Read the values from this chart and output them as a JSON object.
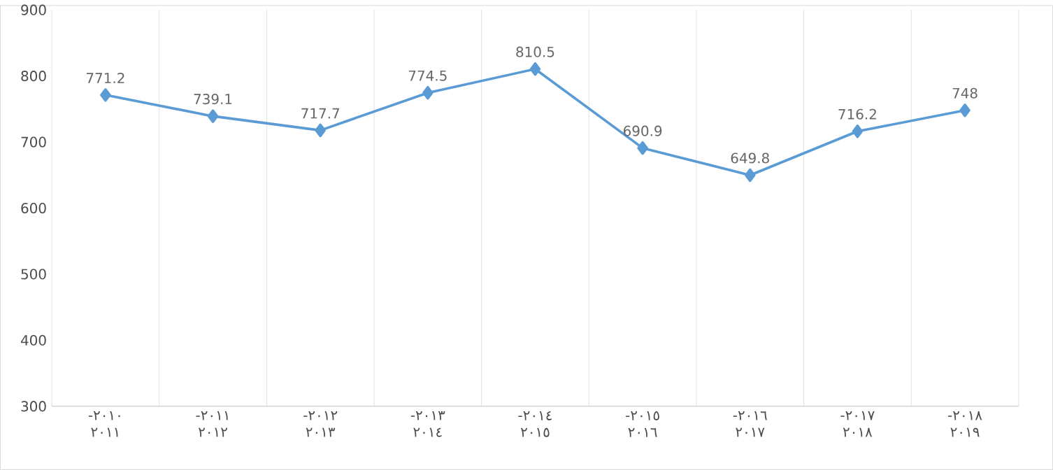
{
  "chart_data": {
    "type": "line",
    "categories": [
      "-٢٠١٠ ٢٠١١",
      "-٢٠١١ ٢٠١٢",
      "-٢٠١٢ ٢٠١٣",
      "-٢٠١٣ ٢٠١٤",
      "-٢٠١٤ ٢٠١٥",
      "-٢٠١٥ ٢٠١٦",
      "-٢٠١٦ ٢٠١٧",
      "-٢٠١٧ ٢٠١٨",
      "-٢٠١٨ ٢٠١٩"
    ],
    "values": [
      771.2,
      739.1,
      717.7,
      774.5,
      810.5,
      690.9,
      649.8,
      716.2,
      748
    ],
    "color": "#5b9bd5",
    "marker": "diamond",
    "data_labels": true,
    "grid": "x",
    "ylim": [
      300,
      900
    ],
    "yticks": [
      300,
      400,
      500,
      600,
      700,
      800,
      900
    ]
  }
}
